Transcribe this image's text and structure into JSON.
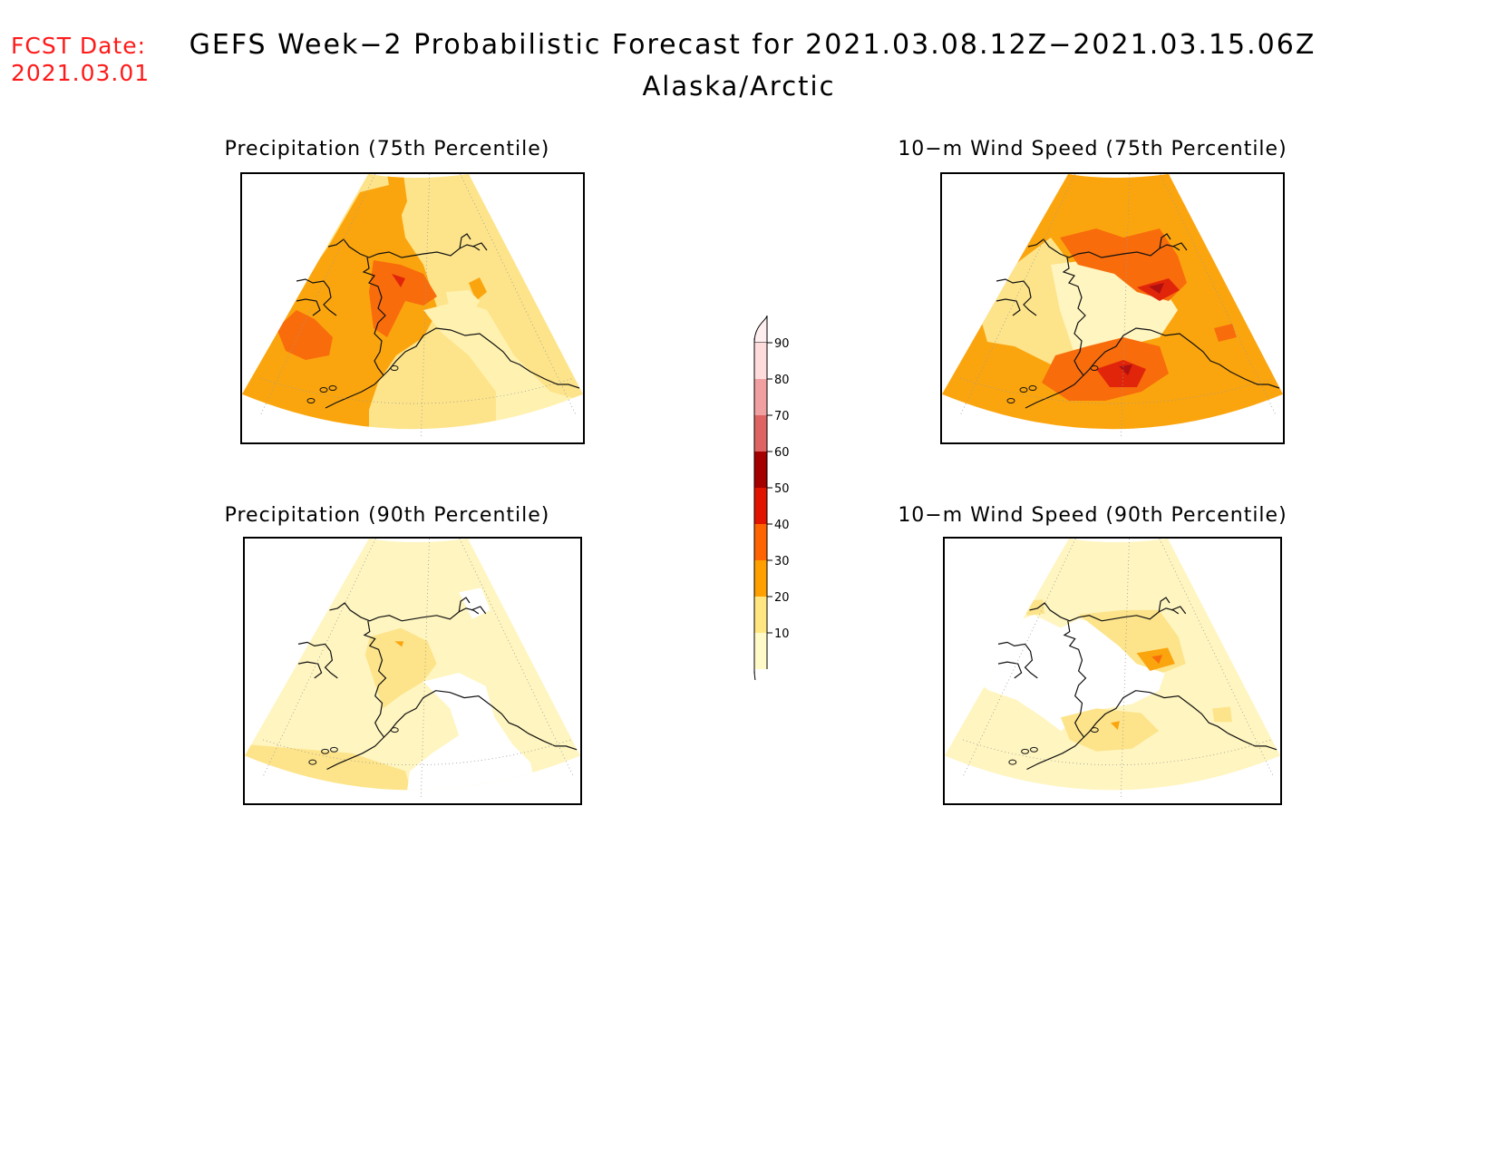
{
  "header": {
    "fcst_label": "FCST Date:",
    "fcst_date": "2021.03.01",
    "title": "GEFS Week−2 Probabilistic Forecast for 2021.03.08.12Z−2021.03.15.06Z",
    "subtitle": "Alaska/Arctic"
  },
  "panels": [
    {
      "title": "Precipitation (75th Percentile)",
      "variable": "precipitation",
      "percentile": 75
    },
    {
      "title": "10−m Wind Speed (75th Percentile)",
      "variable": "wind_speed",
      "percentile": 75
    },
    {
      "title": "Precipitation (90th Percentile)",
      "variable": "precipitation",
      "percentile": 90
    },
    {
      "title": "10−m Wind Speed (90th Percentile)",
      "variable": "wind_speed",
      "percentile": 90
    }
  ],
  "colorbar": {
    "levels": [
      "10",
      "20",
      "30",
      "40",
      "50",
      "60",
      "70",
      "80",
      "90"
    ],
    "colors": [
      "#fffac8",
      "#ffe680",
      "#ffa000",
      "#ff6400",
      "#e11400",
      "#a50000",
      "#de6464",
      "#f0a0a0",
      "#ffdcdc"
    ]
  },
  "palette": {
    "c10": "#fff5c0",
    "c20": "#fde48a",
    "c30": "#fba50e",
    "c40": "#f86c0c",
    "c50": "#e1250a",
    "c60": "#b01010",
    "coast": "#111111"
  }
}
